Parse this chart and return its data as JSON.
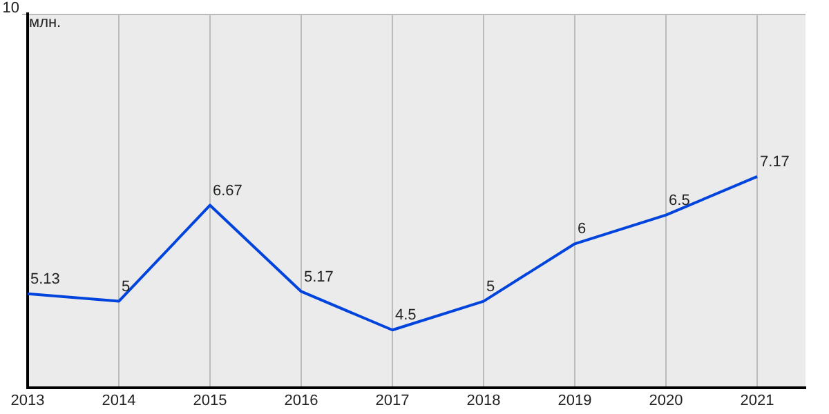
{
  "chart_data": {
    "type": "line",
    "ylabel": "млн.",
    "x": [
      2013,
      2014,
      2015,
      2016,
      2017,
      2018,
      2019,
      2020,
      2021
    ],
    "series": [
      {
        "color": "#0044dd",
        "values": [
          5.13,
          5,
          6.67,
          5.17,
          4.5,
          5,
          6,
          6.5,
          7.17
        ]
      }
    ],
    "xlim": [
      2013,
      2021.53
    ],
    "xticks": [
      2013,
      2014,
      2015,
      2016,
      2017,
      2018,
      2019,
      2020,
      2021
    ],
    "ylim": [
      3.5,
      10
    ],
    "annotations": [
      "10"
    ],
    "grid": "x",
    "data_labels": true,
    "marker": "none",
    "line_style": "solid"
  }
}
